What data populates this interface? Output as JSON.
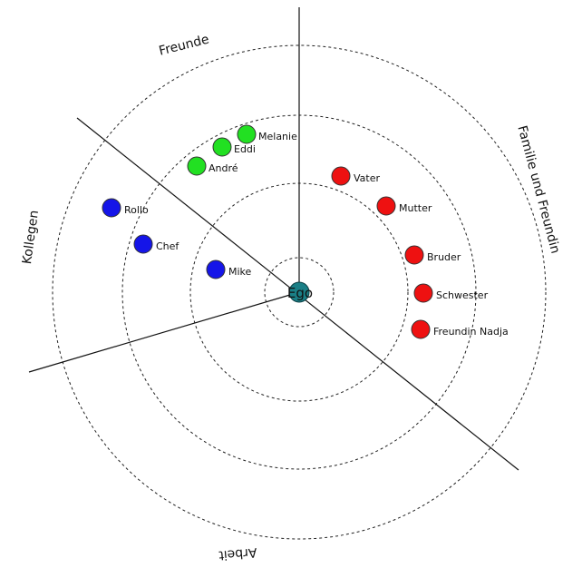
{
  "diagram": {
    "center": {
      "label": "Ego",
      "color": "#1a7f86"
    },
    "sectors": [
      {
        "label": "Freunde"
      },
      {
        "label": "Familie und Freundin"
      },
      {
        "label": "Kollegen"
      },
      {
        "label": "Arbeit"
      }
    ],
    "groups": {
      "friends": {
        "color": "#22e022"
      },
      "family": {
        "color": "#ee1111"
      },
      "colleagues": {
        "color": "#1515e8"
      }
    },
    "people": [
      {
        "label": "Melanie",
        "group": "friends"
      },
      {
        "label": "Eddi",
        "group": "friends"
      },
      {
        "label": "André",
        "group": "friends"
      },
      {
        "label": "Vater",
        "group": "family"
      },
      {
        "label": "Mutter",
        "group": "family"
      },
      {
        "label": "Bruder",
        "group": "family"
      },
      {
        "label": "Schwester",
        "group": "family"
      },
      {
        "label": "Freundin Nadja",
        "group": "family"
      },
      {
        "label": "Rollo",
        "group": "colleagues"
      },
      {
        "label": "Chef",
        "group": "colleagues"
      },
      {
        "label": "Mike",
        "group": "colleagues"
      }
    ]
  }
}
